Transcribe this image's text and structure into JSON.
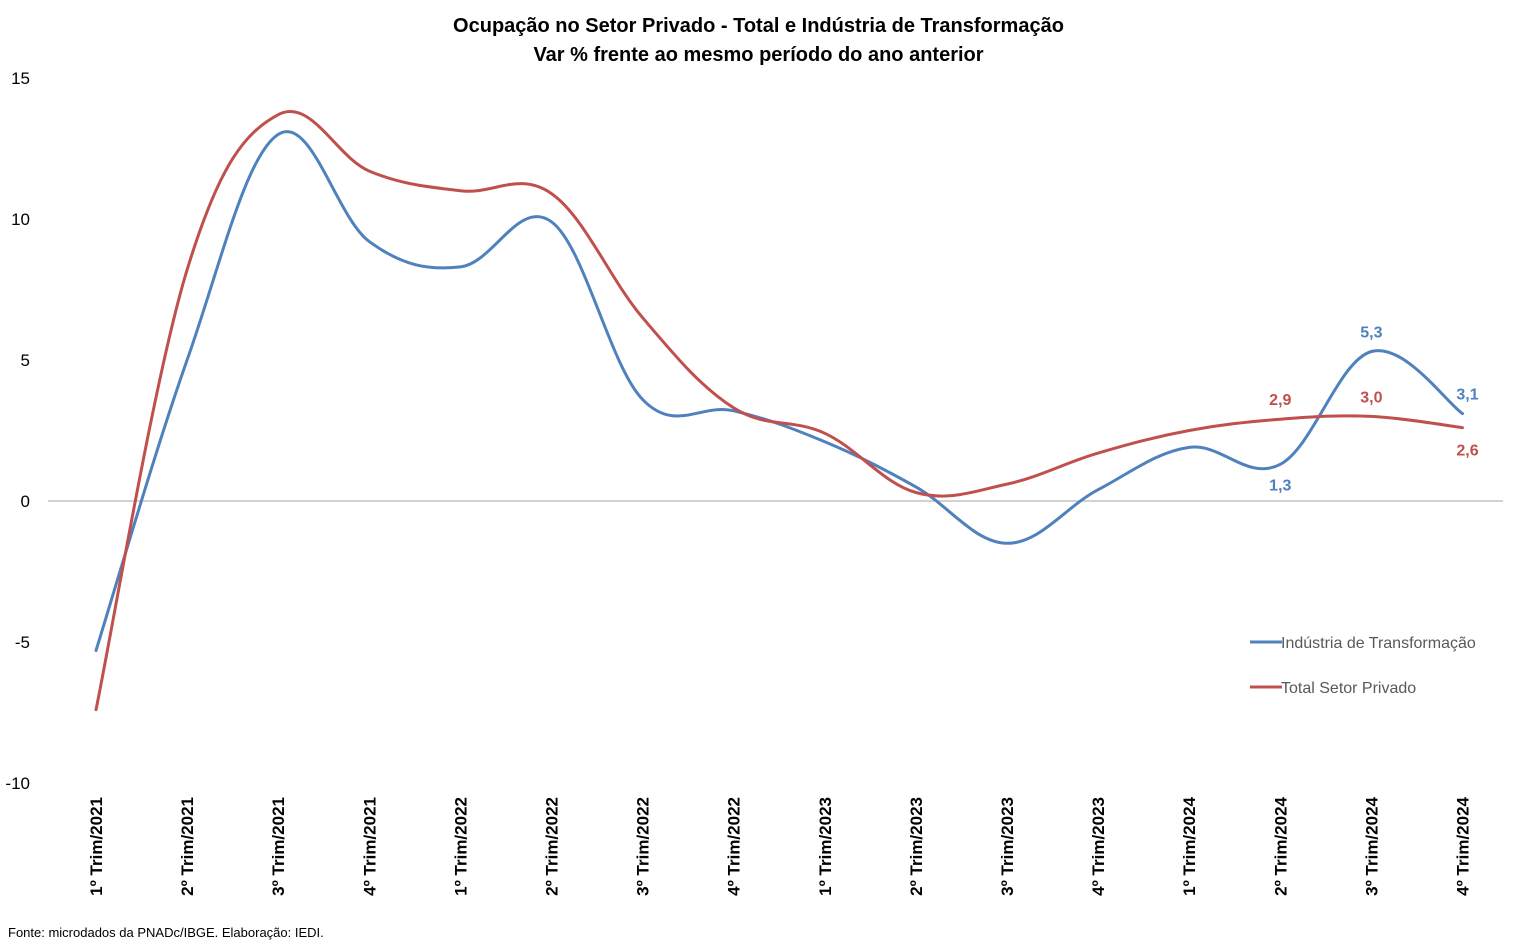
{
  "chart_data": {
    "type": "line",
    "title": "Ocupação no Setor Privado - Total e Indústria de Transformação",
    "subtitle": "Var % frente ao mesmo período do ano anterior",
    "xlabel": "",
    "ylabel": "",
    "ylim": [
      -10,
      15
    ],
    "yticks": [
      15,
      10,
      5,
      0,
      -5,
      -10
    ],
    "categories": [
      "1º Trim/2021",
      "2º Trim/2021",
      "3º Trim/2021",
      "4º Trim/2021",
      "1º Trim/2022",
      "2º Trim/2022",
      "3º Trim/2022",
      "4º Trim/2022",
      "1º Trim/2023",
      "2º Trim/2023",
      "3º Trim/2023",
      "4º Trim/2023",
      "1º Trim/2024",
      "2º Trim/2024",
      "3º Trim/2024",
      "4º Trim/2024"
    ],
    "series": [
      {
        "name": "Indústria de Transformação",
        "color": "#4F81BD",
        "values": [
          -5.3,
          5.0,
          13.0,
          9.2,
          8.3,
          9.9,
          3.6,
          3.2,
          2.1,
          0.5,
          -1.5,
          0.4,
          1.9,
          1.3,
          5.3,
          3.1
        ],
        "labels": {
          "13": "1,3",
          "14": "5,3",
          "15": "3,1"
        }
      },
      {
        "name": "Total Setor Privado",
        "color": "#C0504D",
        "values": [
          -7.4,
          8.2,
          13.7,
          11.7,
          11.0,
          10.9,
          6.5,
          3.3,
          2.4,
          0.3,
          0.6,
          1.7,
          2.5,
          2.9,
          3.0,
          2.6
        ],
        "labels": {
          "13": "2,9",
          "14": "3,0",
          "15": "2,6"
        }
      }
    ],
    "legend_position": "right",
    "grid": false
  },
  "footer": {
    "source": "Fonte: microdados da PNADc/IBGE. Elaboração: IEDI."
  }
}
